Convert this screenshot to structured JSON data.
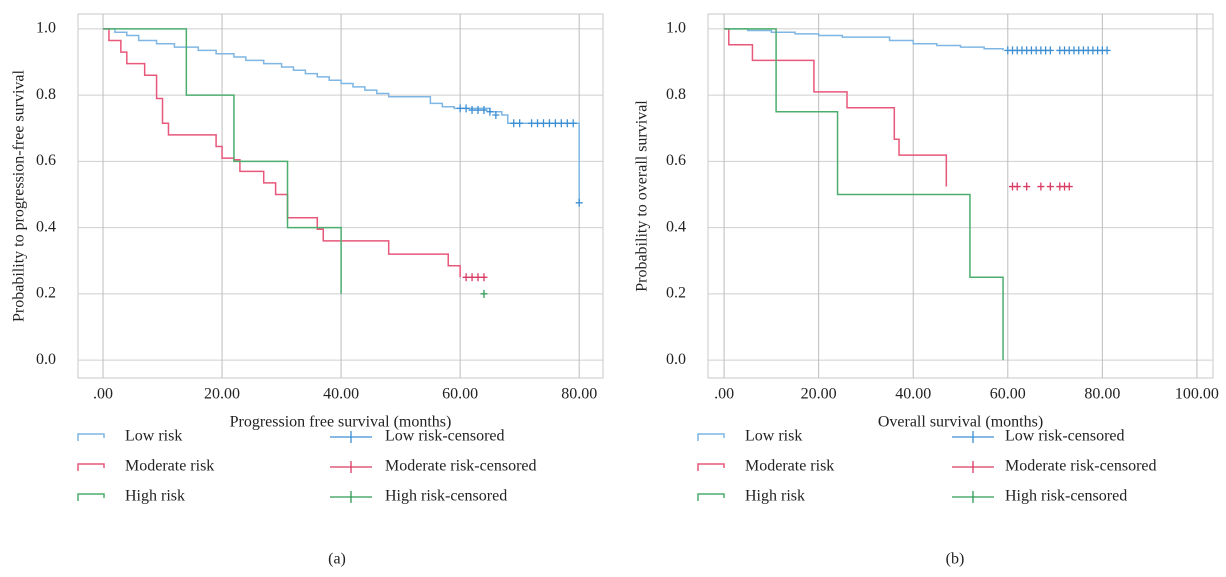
{
  "chart_data": [
    {
      "type": "step",
      "caption": "(a)",
      "x_label": "Progression free survival (months)",
      "y_label": "Probability to progression-free survival",
      "xlim": [
        -4.2,
        84
      ],
      "ylim": [
        -0.054,
        1.045
      ],
      "xticks": [
        {
          "value": 0,
          "label": ".00"
        },
        {
          "value": 20,
          "label": "20.00"
        },
        {
          "value": 40,
          "label": "40.00"
        },
        {
          "value": 60,
          "label": "60.00"
        },
        {
          "value": 80,
          "label": "80.00"
        }
      ],
      "yticks": [
        {
          "value": 0,
          "label": "0.0"
        },
        0.2,
        0.4,
        0.6,
        0.8,
        {
          "value": 1,
          "label": "1.0"
        }
      ],
      "grid": true,
      "series": [
        {
          "name": "Low risk",
          "marker": "step",
          "color": "#7fb6e3",
          "x": [
            0,
            2,
            4,
            6,
            9,
            12,
            16,
            19,
            22,
            24,
            27,
            30,
            32,
            34,
            36,
            38,
            40,
            42,
            44,
            46,
            48,
            55,
            57,
            59,
            65,
            67,
            68,
            80
          ],
          "values": [
            1.0,
            0.99,
            0.98,
            0.965,
            0.955,
            0.945,
            0.935,
            0.925,
            0.915,
            0.905,
            0.895,
            0.885,
            0.875,
            0.865,
            0.855,
            0.845,
            0.835,
            0.825,
            0.815,
            0.805,
            0.795,
            0.775,
            0.765,
            0.76,
            0.75,
            0.74,
            0.715,
            0.475
          ]
        },
        {
          "name": "Moderate risk",
          "marker": "step",
          "color": "#e8587a",
          "x": [
            0,
            1,
            3,
            4,
            7,
            9,
            10,
            11,
            19,
            20,
            22,
            23,
            27,
            29,
            31,
            36,
            37,
            48,
            58,
            60
          ],
          "values": [
            1.0,
            0.965,
            0.93,
            0.895,
            0.86,
            0.79,
            0.715,
            0.68,
            0.645,
            0.61,
            0.605,
            0.57,
            0.535,
            0.5,
            0.43,
            0.395,
            0.36,
            0.32,
            0.285,
            0.25
          ]
        },
        {
          "name": "High risk",
          "marker": "step",
          "color": "#4cae6e",
          "x": [
            0,
            14,
            22,
            31,
            40
          ],
          "values": [
            1.0,
            0.8,
            0.6,
            0.4,
            0.2
          ]
        },
        {
          "name": "Low risk-censored",
          "marker": "plus",
          "color": "#3d8fd3",
          "x": [
            60,
            61,
            62,
            63,
            64,
            65,
            66,
            69,
            70,
            72,
            73,
            74,
            75,
            76,
            77,
            78,
            79,
            80
          ],
          "values": [
            0.76,
            0.76,
            0.755,
            0.755,
            0.755,
            0.75,
            0.74,
            0.715,
            0.715,
            0.715,
            0.715,
            0.715,
            0.715,
            0.715,
            0.715,
            0.715,
            0.715,
            0.475
          ]
        },
        {
          "name": "Moderate risk-censored",
          "marker": "plus",
          "color": "#d93a62",
          "x": [
            61,
            62,
            63,
            64
          ],
          "values": [
            0.25,
            0.25,
            0.25,
            0.25
          ]
        },
        {
          "name": "High risk-censored",
          "marker": "plus",
          "color": "#2f9a55",
          "x": [
            64
          ],
          "values": [
            0.2
          ]
        }
      ]
    },
    {
      "type": "step",
      "caption": "(b)",
      "x_label": "Overall survival (months)",
      "y_label": "Probability to overall survival",
      "xlim": [
        -3.4,
        103.4
      ],
      "ylim": [
        -0.054,
        1.045
      ],
      "xticks": [
        {
          "value": 0,
          "label": ".00"
        },
        {
          "value": 20,
          "label": "20.00"
        },
        {
          "value": 40,
          "label": "40.00"
        },
        {
          "value": 60,
          "label": "60.00"
        },
        {
          "value": 80,
          "label": "80.00"
        },
        {
          "value": 100,
          "label": "100.00"
        }
      ],
      "yticks": [
        {
          "value": 0,
          "label": "0.0"
        },
        0.2,
        0.4,
        0.6,
        0.8,
        {
          "value": 1,
          "label": "1.0"
        }
      ],
      "grid": true,
      "series": [
        {
          "name": "Low risk",
          "marker": "step",
          "color": "#7fb6e3",
          "x": [
            0,
            5,
            10,
            15,
            20,
            25,
            35,
            40,
            45,
            50,
            55,
            59
          ],
          "values": [
            1.0,
            0.995,
            0.99,
            0.985,
            0.98,
            0.975,
            0.965,
            0.955,
            0.95,
            0.945,
            0.94,
            0.935
          ]
        },
        {
          "name": "Moderate risk",
          "marker": "step",
          "color": "#e8587a",
          "x": [
            0,
            1,
            6,
            19,
            26,
            36,
            37,
            47
          ],
          "values": [
            1.0,
            0.952,
            0.905,
            0.81,
            0.762,
            0.667,
            0.619,
            0.524
          ]
        },
        {
          "name": "High risk",
          "marker": "step",
          "color": "#4cae6e",
          "x": [
            0,
            11,
            24,
            52,
            59
          ],
          "values": [
            1.0,
            0.75,
            0.5,
            0.25,
            0.0
          ]
        },
        {
          "name": "Low risk-censored",
          "marker": "plus",
          "color": "#3d8fd3",
          "x": [
            60,
            61,
            62,
            63,
            64,
            65,
            66,
            67,
            68,
            69,
            71,
            72,
            73,
            74,
            75,
            76,
            77,
            78,
            79,
            80,
            81
          ],
          "values": [
            0.935,
            0.935,
            0.935,
            0.935,
            0.935,
            0.935,
            0.935,
            0.935,
            0.935,
            0.935,
            0.935,
            0.935,
            0.935,
            0.935,
            0.935,
            0.935,
            0.935,
            0.935,
            0.935,
            0.935,
            0.935
          ]
        },
        {
          "name": "Moderate risk-censored",
          "marker": "plus",
          "color": "#d93a62",
          "x": [
            61,
            62,
            64,
            67,
            69,
            71,
            72,
            73
          ],
          "values": [
            0.524,
            0.524,
            0.524,
            0.524,
            0.524,
            0.524,
            0.524,
            0.524
          ]
        },
        {
          "name": "High risk-censored",
          "marker": "plus",
          "color": "#2f9a55",
          "x": [],
          "values": []
        }
      ]
    }
  ]
}
